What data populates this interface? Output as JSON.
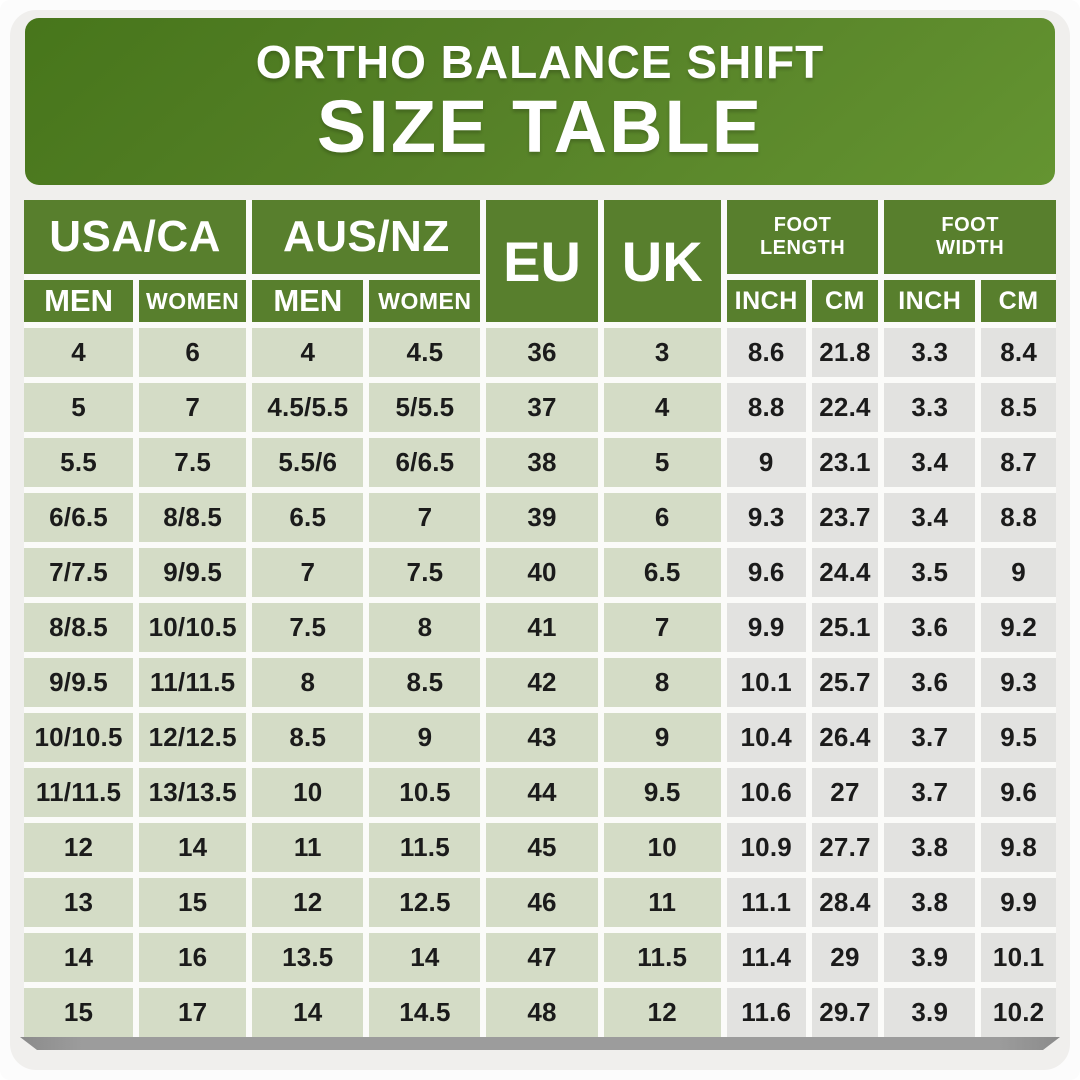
{
  "banner": {
    "line1": "ORTHO BALANCE SHIFT",
    "line2": "SIZE TABLE"
  },
  "table": {
    "groups": {
      "usa_ca": "USA/CA",
      "aus_nz": "AUS/NZ",
      "eu": "EU",
      "uk": "UK",
      "foot_length": "FOOT\nLENGTH",
      "foot_width": "FOOT\nWIDTH"
    },
    "subheaders": [
      "MEN",
      "WOMEN",
      "MEN",
      "WOMEN",
      "INCH",
      "CM",
      "INCH",
      "CM"
    ],
    "rows": [
      [
        "4",
        "6",
        "4",
        "4.5",
        "36",
        "3",
        "8.6",
        "21.8",
        "3.3",
        "8.4"
      ],
      [
        "5",
        "7",
        "4.5/5.5",
        "5/5.5",
        "37",
        "4",
        "8.8",
        "22.4",
        "3.3",
        "8.5"
      ],
      [
        "5.5",
        "7.5",
        "5.5/6",
        "6/6.5",
        "38",
        "5",
        "9",
        "23.1",
        "3.4",
        "8.7"
      ],
      [
        "6/6.5",
        "8/8.5",
        "6.5",
        "7",
        "39",
        "6",
        "9.3",
        "23.7",
        "3.4",
        "8.8"
      ],
      [
        "7/7.5",
        "9/9.5",
        "7",
        "7.5",
        "40",
        "6.5",
        "9.6",
        "24.4",
        "3.5",
        "9"
      ],
      [
        "8/8.5",
        "10/10.5",
        "7.5",
        "8",
        "41",
        "7",
        "9.9",
        "25.1",
        "3.6",
        "9.2"
      ],
      [
        "9/9.5",
        "11/11.5",
        "8",
        "8.5",
        "42",
        "8",
        "10.1",
        "25.7",
        "3.6",
        "9.3"
      ],
      [
        "10/10.5",
        "12/12.5",
        "8.5",
        "9",
        "43",
        "9",
        "10.4",
        "26.4",
        "3.7",
        "9.5"
      ],
      [
        "11/11.5",
        "13/13.5",
        "10",
        "10.5",
        "44",
        "9.5",
        "10.6",
        "27",
        "3.7",
        "9.6"
      ],
      [
        "12",
        "14",
        "11",
        "11.5",
        "45",
        "10",
        "10.9",
        "27.7",
        "3.8",
        "9.8"
      ],
      [
        "13",
        "15",
        "12",
        "12.5",
        "46",
        "11",
        "11.1",
        "28.4",
        "3.8",
        "9.9"
      ],
      [
        "14",
        "16",
        "13.5",
        "14",
        "47",
        "11.5",
        "11.4",
        "29",
        "3.9",
        "10.1"
      ],
      [
        "15",
        "17",
        "14",
        "14.5",
        "48",
        "12",
        "11.6",
        "29.7",
        "3.9",
        "10.2"
      ]
    ]
  },
  "colors": {
    "banner_green_dark": "#47761b",
    "banner_green_light": "#649431",
    "header_green": "#587f2d",
    "cell_sage": "#d4dcc6",
    "cell_gray": "#e2e2e0",
    "page_bg": "#f0efed",
    "frame_white": "#fcfcfc",
    "gap_white": "#fbfbf9",
    "text_dark": "#1b1b1b",
    "shadow_gray": "#9c9c9c"
  }
}
